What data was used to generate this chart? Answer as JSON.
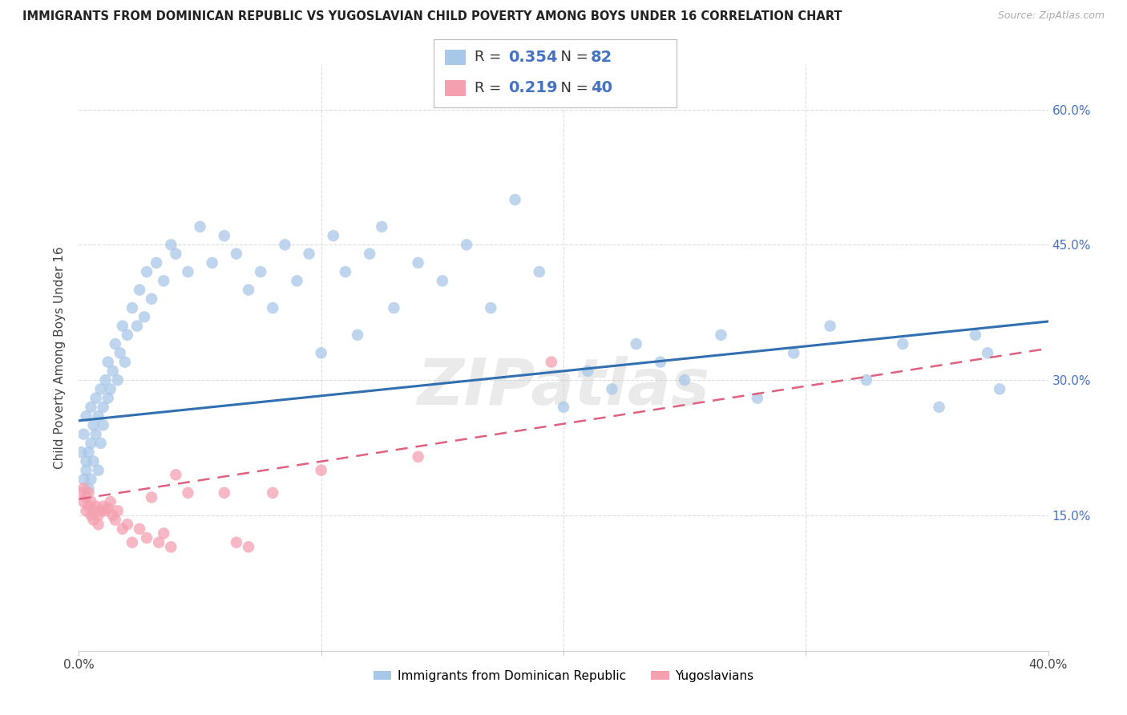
{
  "title": "IMMIGRANTS FROM DOMINICAN REPUBLIC VS YUGOSLAVIAN CHILD POVERTY AMONG BOYS UNDER 16 CORRELATION CHART",
  "source_text": "Source: ZipAtlas.com",
  "ylabel": "Child Poverty Among Boys Under 16",
  "xlim": [
    0.0,
    0.4
  ],
  "ylim": [
    0.0,
    0.65
  ],
  "color_blue": "#a8c8e8",
  "color_pink": "#f4a0b0",
  "color_line_blue": "#3070b0",
  "color_line_pink": "#e06080",
  "watermark": "ZIPatlas",
  "blue_line_x0": 0.0,
  "blue_line_y0": 0.255,
  "blue_line_x1": 0.4,
  "blue_line_y1": 0.365,
  "pink_line_x0": 0.0,
  "pink_line_y0": 0.168,
  "pink_line_x1": 0.4,
  "pink_line_y1": 0.335,
  "blue_x": [
    0.001,
    0.002,
    0.002,
    0.003,
    0.003,
    0.003,
    0.004,
    0.004,
    0.005,
    0.005,
    0.005,
    0.006,
    0.006,
    0.007,
    0.007,
    0.008,
    0.008,
    0.009,
    0.009,
    0.01,
    0.01,
    0.011,
    0.012,
    0.012,
    0.013,
    0.014,
    0.015,
    0.016,
    0.017,
    0.018,
    0.019,
    0.02,
    0.022,
    0.024,
    0.025,
    0.027,
    0.028,
    0.03,
    0.032,
    0.035,
    0.038,
    0.04,
    0.045,
    0.05,
    0.055,
    0.06,
    0.065,
    0.07,
    0.075,
    0.08,
    0.085,
    0.09,
    0.095,
    0.1,
    0.105,
    0.11,
    0.115,
    0.12,
    0.125,
    0.13,
    0.14,
    0.15,
    0.16,
    0.17,
    0.18,
    0.19,
    0.2,
    0.21,
    0.22,
    0.23,
    0.24,
    0.25,
    0.265,
    0.28,
    0.295,
    0.31,
    0.325,
    0.34,
    0.355,
    0.37,
    0.375,
    0.38
  ],
  "blue_y": [
    0.22,
    0.19,
    0.24,
    0.2,
    0.26,
    0.21,
    0.22,
    0.18,
    0.27,
    0.23,
    0.19,
    0.25,
    0.21,
    0.28,
    0.24,
    0.26,
    0.2,
    0.23,
    0.29,
    0.25,
    0.27,
    0.3,
    0.28,
    0.32,
    0.29,
    0.31,
    0.34,
    0.3,
    0.33,
    0.36,
    0.32,
    0.35,
    0.38,
    0.36,
    0.4,
    0.37,
    0.42,
    0.39,
    0.43,
    0.41,
    0.45,
    0.44,
    0.42,
    0.47,
    0.43,
    0.46,
    0.44,
    0.4,
    0.42,
    0.38,
    0.45,
    0.41,
    0.44,
    0.33,
    0.46,
    0.42,
    0.35,
    0.44,
    0.47,
    0.38,
    0.43,
    0.41,
    0.45,
    0.38,
    0.5,
    0.42,
    0.27,
    0.31,
    0.29,
    0.34,
    0.32,
    0.3,
    0.35,
    0.28,
    0.33,
    0.36,
    0.3,
    0.34,
    0.27,
    0.35,
    0.33,
    0.29
  ],
  "pink_x": [
    0.001,
    0.002,
    0.002,
    0.003,
    0.003,
    0.004,
    0.004,
    0.005,
    0.005,
    0.006,
    0.006,
    0.007,
    0.008,
    0.008,
    0.009,
    0.01,
    0.011,
    0.012,
    0.013,
    0.014,
    0.015,
    0.016,
    0.018,
    0.02,
    0.022,
    0.025,
    0.028,
    0.03,
    0.033,
    0.035,
    0.038,
    0.04,
    0.045,
    0.06,
    0.065,
    0.07,
    0.08,
    0.1,
    0.14,
    0.195
  ],
  "pink_y": [
    0.175,
    0.165,
    0.18,
    0.155,
    0.17,
    0.16,
    0.175,
    0.15,
    0.165,
    0.155,
    0.145,
    0.16,
    0.15,
    0.14,
    0.155,
    0.16,
    0.155,
    0.158,
    0.165,
    0.15,
    0.145,
    0.155,
    0.135,
    0.14,
    0.12,
    0.135,
    0.125,
    0.17,
    0.12,
    0.13,
    0.115,
    0.195,
    0.175,
    0.175,
    0.12,
    0.115,
    0.175,
    0.2,
    0.215,
    0.32
  ],
  "grid_color": "#dddddd",
  "background_color": "#ffffff",
  "legend_r1_val": "0.354",
  "legend_n1_val": "82",
  "legend_r2_val": "0.219",
  "legend_n2_val": "40"
}
